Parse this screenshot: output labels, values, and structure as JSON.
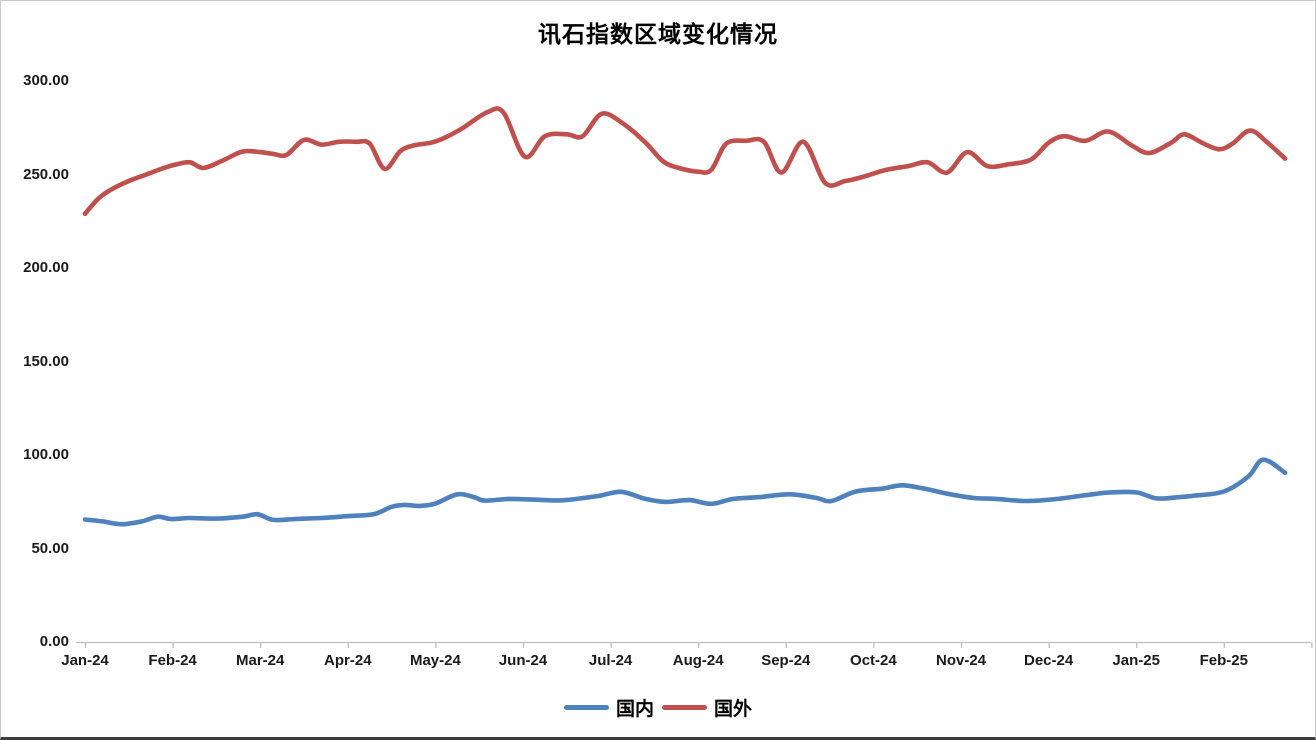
{
  "title": "讯石指数区域变化情况",
  "legend": [
    {
      "label": "国内",
      "color": "#4F81BD"
    },
    {
      "label": "国外",
      "color": "#C0504D"
    }
  ],
  "chart_data": {
    "type": "line",
    "title": "讯石指数区域变化情况",
    "xlabel": "",
    "ylabel": "",
    "grid": false,
    "legend_position": "bottom",
    "x_axis": {
      "categories": [
        "Jan-24",
        "Feb-24",
        "Mar-24",
        "Apr-24",
        "May-24",
        "Jun-24",
        "Jul-24",
        "Aug-24",
        "Sep-24",
        "Oct-24",
        "Nov-24",
        "Dec-24",
        "Jan-25",
        "Feb-25"
      ],
      "x_unit": "months from Jan-24 tick"
    },
    "y_axis": {
      "ticks": [
        "0.00",
        "50.00",
        "100.00",
        "150.00",
        "200.00",
        "250.00",
        "300.00"
      ],
      "min": 0,
      "max": 300
    },
    "series": [
      {
        "name": "国内",
        "color": "#4F81BD",
        "points": [
          [
            0,
            65.5
          ],
          [
            0.2,
            64.5
          ],
          [
            0.42,
            63
          ],
          [
            0.65,
            64.5
          ],
          [
            0.83,
            67
          ],
          [
            0.98,
            65.8
          ],
          [
            1.2,
            66.3
          ],
          [
            1.5,
            66
          ],
          [
            1.8,
            67
          ],
          [
            1.97,
            68.3
          ],
          [
            2.15,
            65.3
          ],
          [
            2.4,
            65.8
          ],
          [
            2.7,
            66.3
          ],
          [
            3.0,
            67.3
          ],
          [
            3.3,
            68.4
          ],
          [
            3.5,
            72.3
          ],
          [
            3.65,
            73.3
          ],
          [
            3.82,
            72.8
          ],
          [
            4.0,
            74
          ],
          [
            4.25,
            79
          ],
          [
            4.45,
            77.3
          ],
          [
            4.56,
            75.6
          ],
          [
            4.85,
            76.5
          ],
          [
            5.2,
            76
          ],
          [
            5.45,
            75.8
          ],
          [
            5.85,
            78
          ],
          [
            6.12,
            80.3
          ],
          [
            6.4,
            76.5
          ],
          [
            6.63,
            74.9
          ],
          [
            6.9,
            75.9
          ],
          [
            7.15,
            73.9
          ],
          [
            7.4,
            76.5
          ],
          [
            7.7,
            77.5
          ],
          [
            8.05,
            79
          ],
          [
            8.35,
            77
          ],
          [
            8.52,
            75.4
          ],
          [
            8.8,
            80.5
          ],
          [
            9.1,
            82
          ],
          [
            9.33,
            83.8
          ],
          [
            9.6,
            81.8
          ],
          [
            9.87,
            79.1
          ],
          [
            10.15,
            77
          ],
          [
            10.4,
            76.5
          ],
          [
            10.75,
            75.4
          ],
          [
            11.1,
            76.5
          ],
          [
            11.5,
            79
          ],
          [
            11.7,
            80
          ],
          [
            12.0,
            80
          ],
          [
            12.23,
            76.8
          ],
          [
            12.45,
            77.3
          ],
          [
            12.65,
            78.2
          ],
          [
            13.0,
            80.5
          ],
          [
            13.28,
            88.5
          ],
          [
            13.45,
            97.5
          ],
          [
            13.7,
            90.5
          ]
        ]
      },
      {
        "name": "国外",
        "color": "#C0504D",
        "points": [
          [
            0,
            229
          ],
          [
            0.15,
            237
          ],
          [
            0.3,
            242
          ],
          [
            0.5,
            246.5
          ],
          [
            0.7,
            250
          ],
          [
            0.9,
            253.5
          ],
          [
            1.05,
            255.5
          ],
          [
            1.2,
            256.5
          ],
          [
            1.35,
            253.5
          ],
          [
            1.55,
            257
          ],
          [
            1.75,
            261.5
          ],
          [
            1.85,
            262.5
          ],
          [
            2.0,
            262
          ],
          [
            2.15,
            261
          ],
          [
            2.3,
            260.5
          ],
          [
            2.5,
            268.5
          ],
          [
            2.7,
            266
          ],
          [
            2.9,
            267.5
          ],
          [
            3.1,
            267.5
          ],
          [
            3.25,
            266.5
          ],
          [
            3.42,
            253
          ],
          [
            3.6,
            262.5
          ],
          [
            3.75,
            265.5
          ],
          [
            3.95,
            267
          ],
          [
            4.1,
            269.5
          ],
          [
            4.3,
            274.5
          ],
          [
            4.6,
            283.5
          ],
          [
            4.78,
            283
          ],
          [
            5.02,
            259.5
          ],
          [
            5.25,
            270.5
          ],
          [
            5.5,
            271.5
          ],
          [
            5.68,
            270.5
          ],
          [
            5.9,
            282.5
          ],
          [
            6.15,
            277
          ],
          [
            6.4,
            267
          ],
          [
            6.6,
            257
          ],
          [
            6.78,
            253.5
          ],
          [
            7.0,
            251.5
          ],
          [
            7.15,
            252.5
          ],
          [
            7.32,
            266.5
          ],
          [
            7.55,
            268
          ],
          [
            7.75,
            267.5
          ],
          [
            7.95,
            251
          ],
          [
            8.2,
            267.5
          ],
          [
            8.45,
            245.5
          ],
          [
            8.68,
            246.5
          ],
          [
            8.9,
            249
          ],
          [
            9.15,
            252.5
          ],
          [
            9.4,
            254.5
          ],
          [
            9.62,
            256.5
          ],
          [
            9.84,
            251
          ],
          [
            10.07,
            262
          ],
          [
            10.3,
            254.5
          ],
          [
            10.55,
            255.5
          ],
          [
            10.8,
            258
          ],
          [
            11.0,
            267
          ],
          [
            11.18,
            270.5
          ],
          [
            11.42,
            268
          ],
          [
            11.68,
            273
          ],
          [
            11.95,
            265.5
          ],
          [
            12.15,
            261.5
          ],
          [
            12.4,
            267
          ],
          [
            12.55,
            271.5
          ],
          [
            12.77,
            266.5
          ],
          [
            12.95,
            263.5
          ],
          [
            13.1,
            266.5
          ],
          [
            13.3,
            273.5
          ],
          [
            13.5,
            267
          ],
          [
            13.7,
            258.5
          ]
        ]
      }
    ],
    "axis_color": "#BFBFBF"
  }
}
